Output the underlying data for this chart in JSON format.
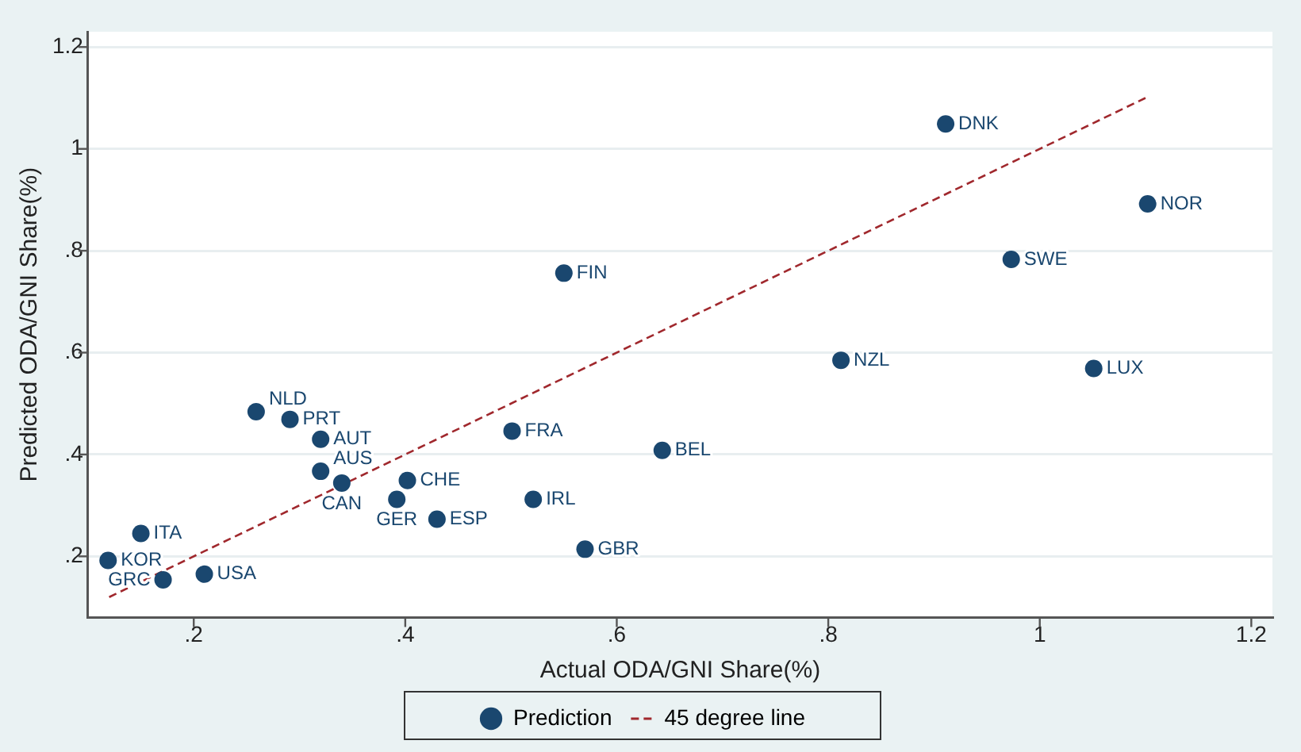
{
  "chart_data": {
    "type": "scatter",
    "xlabel": "Actual ODA/GNI Share(%)",
    "ylabel": "Predicted ODA/GNI Share(%)",
    "xlim": [
      0.1,
      1.22
    ],
    "ylim": [
      0.08,
      1.23
    ],
    "xticks": [
      {
        "value": 0.2,
        "label": ".2"
      },
      {
        "value": 0.4,
        "label": ".4"
      },
      {
        "value": 0.6,
        "label": ".6"
      },
      {
        "value": 0.8,
        "label": ".8"
      },
      1,
      1.2
    ],
    "yticks": [
      {
        "value": 0.2,
        "label": ".2"
      },
      {
        "value": 0.4,
        "label": ".4"
      },
      {
        "value": 0.6,
        "label": ".6"
      },
      {
        "value": 0.8,
        "label": ".8"
      },
      1,
      1.2
    ],
    "grid": "y",
    "legend": "bottom",
    "marker": "circle",
    "series": [
      {
        "name": "Prediction",
        "color": "#1a476f",
        "x": [
          0.119,
          0.15,
          0.171,
          0.21,
          0.259,
          0.291,
          0.32,
          0.32,
          0.34,
          0.402,
          0.392,
          0.43,
          0.501,
          0.521,
          0.55,
          0.57,
          0.643,
          0.812,
          0.911,
          0.973,
          1.051,
          1.102
        ],
        "values": [
          0.192,
          0.245,
          0.154,
          0.165,
          0.484,
          0.469,
          0.43,
          0.367,
          0.344,
          0.349,
          0.312,
          0.273,
          0.446,
          0.312,
          0.756,
          0.214,
          0.408,
          0.585,
          1.049,
          0.783,
          0.569,
          0.892
        ]
      },
      {
        "name": "45 degree line",
        "type": "line",
        "color": "#a0282d",
        "line_style": "dashed",
        "marker": "none",
        "x": [
          0.12,
          0.15,
          0.17,
          0.21,
          0.26,
          0.29,
          0.32,
          0.34,
          0.39,
          0.4,
          0.43,
          0.5,
          0.52,
          0.55,
          0.57,
          0.64,
          0.81,
          0.91,
          0.97,
          1.05,
          1.1
        ],
        "values": [
          0.12,
          0.15,
          0.17,
          0.21,
          0.26,
          0.29,
          0.32,
          0.34,
          0.39,
          0.4,
          0.43,
          0.5,
          0.52,
          0.55,
          0.57,
          0.64,
          0.81,
          0.91,
          0.97,
          1.05,
          1.1
        ]
      }
    ],
    "annotations": [
      {
        "text": "KOR",
        "x": 0.119,
        "y": 0.192
      },
      {
        "text": "ITA",
        "x": 0.15,
        "y": 0.245
      },
      {
        "text": "GRC",
        "x": 0.171,
        "y": 0.154
      },
      {
        "text": "USA",
        "x": 0.21,
        "y": 0.165
      },
      {
        "text": "NLD",
        "x": 0.259,
        "y": 0.484
      },
      {
        "text": "PRT",
        "x": 0.291,
        "y": 0.469
      },
      {
        "text": "AUT",
        "x": 0.32,
        "y": 0.43
      },
      {
        "text": "AUS",
        "x": 0.32,
        "y": 0.367
      },
      {
        "text": "CAN",
        "x": 0.34,
        "y": 0.344
      },
      {
        "text": "CHE",
        "x": 0.402,
        "y": 0.349
      },
      {
        "text": "GER",
        "x": 0.392,
        "y": 0.312
      },
      {
        "text": "ESP",
        "x": 0.43,
        "y": 0.273
      },
      {
        "text": "FRA",
        "x": 0.501,
        "y": 0.446
      },
      {
        "text": "IRL",
        "x": 0.521,
        "y": 0.312
      },
      {
        "text": "FIN",
        "x": 0.55,
        "y": 0.756
      },
      {
        "text": "GBR",
        "x": 0.57,
        "y": 0.214
      },
      {
        "text": "BEL",
        "x": 0.643,
        "y": 0.408
      },
      {
        "text": "NZL",
        "x": 0.812,
        "y": 0.585
      },
      {
        "text": "DNK",
        "x": 0.911,
        "y": 1.049
      },
      {
        "text": "SWE",
        "x": 0.973,
        "y": 0.783
      },
      {
        "text": "LUX",
        "x": 1.051,
        "y": 0.569
      },
      {
        "text": "NOR",
        "x": 1.102,
        "y": 0.892
      }
    ]
  }
}
